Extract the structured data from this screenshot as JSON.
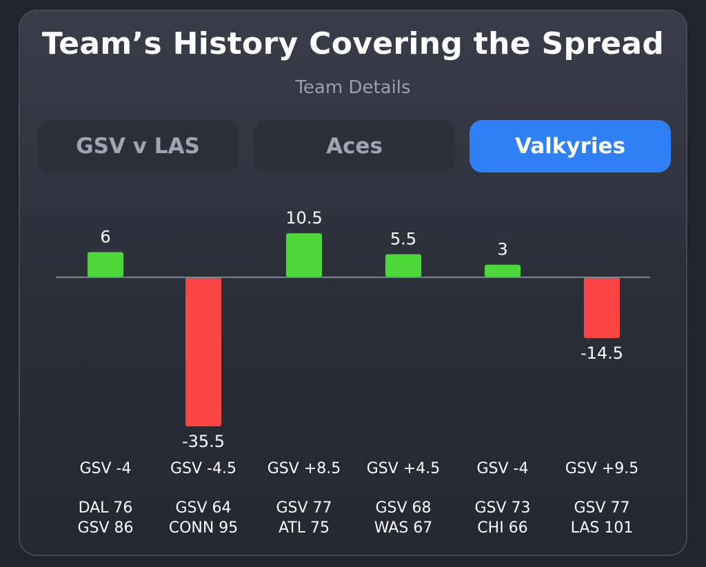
{
  "title": "Team’s History Covering the Spread",
  "subtitle": "Team Details",
  "tabs": [
    {
      "label": "GSV v LAS",
      "active": false
    },
    {
      "label": "Aces",
      "active": false
    },
    {
      "label": "Valkyries",
      "active": true
    }
  ],
  "colors": {
    "positive": "#4cd838",
    "negative": "#fb4545",
    "axis": "#7b8494",
    "active_tab": "#2f7ff5"
  },
  "chart_data": {
    "type": "bar",
    "title": "Team’s History Covering the Spread",
    "categories": [
      {
        "spread": "GSV -4",
        "score_line1": "DAL 76",
        "score_line2": "GSV 86"
      },
      {
        "spread": "GSV -4.5",
        "score_line1": "GSV 64",
        "score_line2": "CONN 95"
      },
      {
        "spread": "GSV +8.5",
        "score_line1": "GSV 77",
        "score_line2": "ATL 75"
      },
      {
        "spread": "GSV +4.5",
        "score_line1": "GSV 68",
        "score_line2": "WAS 67"
      },
      {
        "spread": "GSV -4",
        "score_line1": "GSV 73",
        "score_line2": "CHI 66"
      },
      {
        "spread": "GSV +9.5",
        "score_line1": "GSV 77",
        "score_line2": "LAS 101"
      }
    ],
    "values": [
      6,
      -35.5,
      10.5,
      5.5,
      3,
      -14.5
    ],
    "value_labels": [
      "6",
      "-35.5",
      "10.5",
      "5.5",
      "3",
      "-14.5"
    ],
    "ylim": [
      -35.5,
      10.5
    ],
    "xlabel": "",
    "ylabel": ""
  }
}
